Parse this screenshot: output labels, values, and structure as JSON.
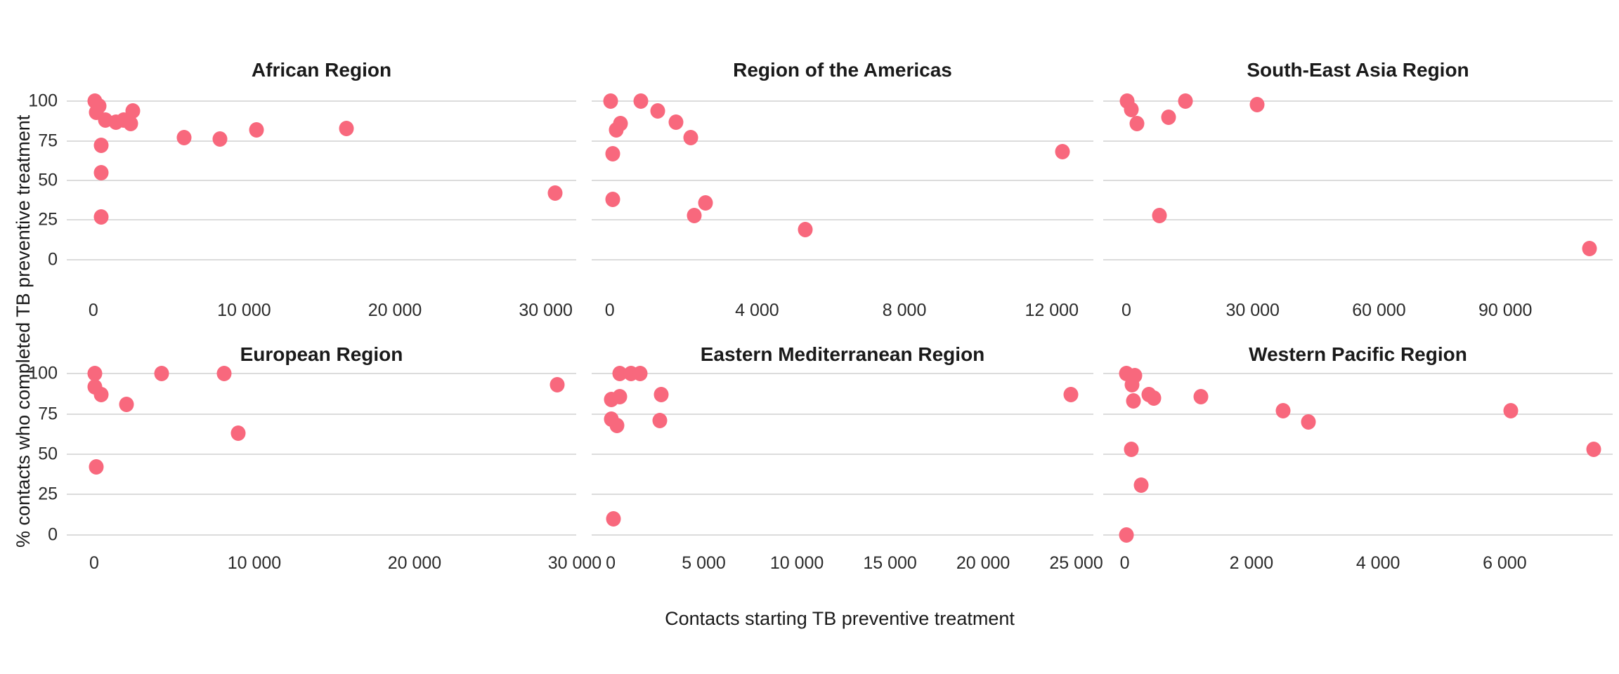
{
  "figure": {
    "x_axis_title": "Contacts starting TB preventive treatment",
    "y_axis_title": "% contacts who completed TB preventive treatment",
    "colors": {
      "point": "#F8687D",
      "gridline": "#DCDCDC",
      "background": "#FFFFFF",
      "title_text": "#1A1A1A",
      "tick_text": "#2B2B2B"
    }
  },
  "chart_data": [
    {
      "type": "scatter",
      "title": "African Region",
      "row": 0,
      "col": 0,
      "xlabel": "Contacts starting TB preventive treatment",
      "ylabel": "% contacts who completed TB preventive treatment",
      "x_domain": [
        -1760,
        32020
      ],
      "y_domain": [
        -5,
        105
      ],
      "y_ticks": [
        100,
        75,
        50,
        25,
        0
      ],
      "x_ticks": [
        {
          "v": 0,
          "label": "0"
        },
        {
          "v": 10000,
          "label": "10 000"
        },
        {
          "v": 20000,
          "label": "20 000"
        },
        {
          "v": 30000,
          "label": "30 000"
        }
      ],
      "points": [
        [
          100,
          100
        ],
        [
          400,
          97
        ],
        [
          200,
          93
        ],
        [
          800,
          88
        ],
        [
          1500,
          87
        ],
        [
          2000,
          88
        ],
        [
          2500,
          86
        ],
        [
          2600,
          94
        ],
        [
          500,
          72
        ],
        [
          500,
          55
        ],
        [
          500,
          27
        ],
        [
          6000,
          77
        ],
        [
          8400,
          76
        ],
        [
          10800,
          82
        ],
        [
          16800,
          83
        ],
        [
          30600,
          42
        ]
      ]
    },
    {
      "type": "scatter",
      "title": "Region of the Americas",
      "row": 0,
      "col": 1,
      "xlabel": "Contacts starting TB preventive treatment",
      "ylabel": "% contacts who completed TB preventive treatment",
      "x_domain": [
        -490,
        13130
      ],
      "y_domain": [
        -5,
        105
      ],
      "y_ticks": [
        100,
        75,
        50,
        25,
        0
      ],
      "x_ticks": [
        {
          "v": 0,
          "label": "0"
        },
        {
          "v": 4000,
          "label": "4 000"
        },
        {
          "v": 8000,
          "label": "8 000"
        },
        {
          "v": 12000,
          "label": "12 000"
        }
      ],
      "points": [
        [
          30,
          100
        ],
        [
          840,
          100
        ],
        [
          1300,
          94
        ],
        [
          1800,
          87
        ],
        [
          2200,
          77
        ],
        [
          170,
          82
        ],
        [
          290,
          86
        ],
        [
          80,
          67
        ],
        [
          80,
          38
        ],
        [
          2600,
          36
        ],
        [
          2300,
          28
        ],
        [
          5300,
          19
        ],
        [
          12300,
          68
        ]
      ]
    },
    {
      "type": "scatter",
      "title": "South-East Asia Region",
      "row": 0,
      "col": 2,
      "xlabel": "Contacts starting TB preventive treatment",
      "ylabel": "% contacts who completed TB preventive treatment",
      "x_domain": [
        -5500,
        115500
      ],
      "y_domain": [
        -5,
        105
      ],
      "y_ticks": [
        100,
        75,
        50,
        25,
        0
      ],
      "x_ticks": [
        {
          "v": 0,
          "label": "0"
        },
        {
          "v": 30000,
          "label": "30 000"
        },
        {
          "v": 60000,
          "label": "60 000"
        },
        {
          "v": 90000,
          "label": "90 000"
        }
      ],
      "points": [
        [
          200,
          100
        ],
        [
          1200,
          95
        ],
        [
          2500,
          86
        ],
        [
          10000,
          90
        ],
        [
          14000,
          100
        ],
        [
          31000,
          98
        ],
        [
          7800,
          28
        ],
        [
          110000,
          7
        ]
      ]
    },
    {
      "type": "scatter",
      "title": "European Region",
      "row": 1,
      "col": 0,
      "xlabel": "Contacts starting TB preventive treatment",
      "ylabel": "% contacts who completed TB preventive treatment",
      "x_domain": [
        -1710,
        30090
      ],
      "y_domain": [
        -5,
        105
      ],
      "y_ticks": [
        100,
        75,
        50,
        25,
        0
      ],
      "x_ticks": [
        {
          "v": 0,
          "label": "0"
        },
        {
          "v": 10000,
          "label": "10 000"
        },
        {
          "v": 20000,
          "label": "20 000"
        },
        {
          "v": 30000,
          "label": "30 000"
        }
      ],
      "points": [
        [
          50,
          100
        ],
        [
          50,
          92
        ],
        [
          450,
          87
        ],
        [
          2000,
          81
        ],
        [
          4200,
          100
        ],
        [
          8100,
          100
        ],
        [
          9000,
          63
        ],
        [
          140,
          42
        ],
        [
          28900,
          93
        ]
      ]
    },
    {
      "type": "scatter",
      "title": "Eastern Mediterranean Region",
      "row": 1,
      "col": 1,
      "xlabel": "Contacts starting TB preventive treatment",
      "ylabel": "% contacts who completed TB preventive treatment",
      "x_domain": [
        -1020,
        25920
      ],
      "y_domain": [
        -5,
        105
      ],
      "y_ticks": [
        100,
        75,
        50,
        25,
        0
      ],
      "x_ticks": [
        {
          "v": 0,
          "label": "0"
        },
        {
          "v": 5000,
          "label": "5 000"
        },
        {
          "v": 10000,
          "label": "10 000"
        },
        {
          "v": 15000,
          "label": "15 000"
        },
        {
          "v": 20000,
          "label": "20 000"
        },
        {
          "v": 25000,
          "label": "25 000"
        }
      ],
      "points": [
        [
          500,
          100
        ],
        [
          1100,
          100
        ],
        [
          1600,
          100
        ],
        [
          40,
          84
        ],
        [
          500,
          86
        ],
        [
          40,
          72
        ],
        [
          350,
          68
        ],
        [
          2700,
          87
        ],
        [
          2650,
          71
        ],
        [
          140,
          10
        ],
        [
          24700,
          87
        ]
      ]
    },
    {
      "type": "scatter",
      "title": "Western Pacific Region",
      "row": 1,
      "col": 2,
      "xlabel": "Contacts starting TB preventive treatment",
      "ylabel": "% contacts who completed TB preventive treatment",
      "x_domain": [
        -340,
        7705
      ],
      "y_domain": [
        -5,
        105
      ],
      "y_ticks": [
        100,
        75,
        50,
        25,
        0
      ],
      "x_ticks": [
        {
          "v": 0,
          "label": "0"
        },
        {
          "v": 2000,
          "label": "2 000"
        },
        {
          "v": 4000,
          "label": "4 000"
        },
        {
          "v": 6000,
          "label": "6 000"
        }
      ],
      "points": [
        [
          30,
          100
        ],
        [
          160,
          99
        ],
        [
          120,
          93
        ],
        [
          140,
          83
        ],
        [
          380,
          87
        ],
        [
          460,
          85
        ],
        [
          1200,
          86
        ],
        [
          2500,
          77
        ],
        [
          2900,
          70
        ],
        [
          100,
          53
        ],
        [
          260,
          31
        ],
        [
          30,
          0
        ],
        [
          6100,
          77
        ],
        [
          7400,
          53
        ]
      ]
    }
  ]
}
